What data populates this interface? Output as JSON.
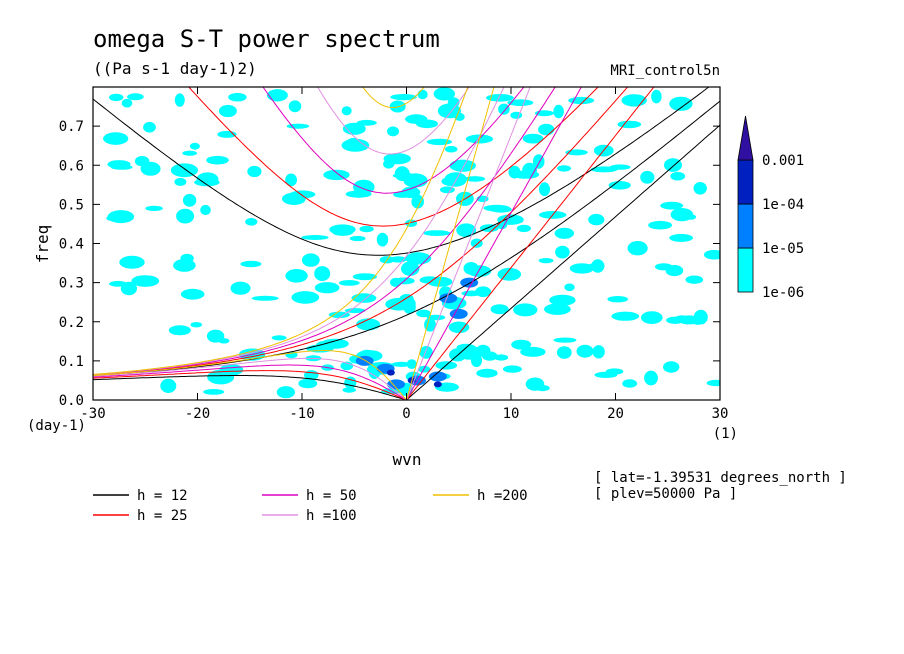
{
  "chart_data": {
    "type": "heatmap",
    "title": "omega S-T power spectrum",
    "units": "((Pa s-1 day-1)2)",
    "source": "MRI_control5n",
    "xlabel": "wvn",
    "ylabel": "freq",
    "x_unit": "(1)",
    "y_unit": "(day-1)",
    "xlim": [
      -30,
      30
    ],
    "ylim": [
      0,
      0.8
    ],
    "x_ticks": [
      -30,
      -20,
      -10,
      0,
      10,
      20,
      30
    ],
    "y_ticks": [
      0,
      0.1,
      0.2,
      0.3,
      0.4,
      0.5,
      0.6,
      0.7
    ],
    "grid": false,
    "colorbar": {
      "levels": [
        "1e-06",
        "1e-05",
        "1e-04",
        "0.001"
      ],
      "colors": [
        "#00ffff",
        "#0080ff",
        "#0020c0",
        "#3010a0"
      ]
    },
    "dispersion_curves": [
      {
        "label": "h = 12",
        "h": 12,
        "color": "#000000"
      },
      {
        "label": "h = 25",
        "h": 25,
        "color": "#ff0000"
      },
      {
        "label": "h = 50",
        "h": 50,
        "color": "#e000c0"
      },
      {
        "label": "h =100",
        "h": 100,
        "color": "#e090e0"
      },
      {
        "label": "h =200",
        "h": 200,
        "color": "#f0c000"
      }
    ],
    "annotations": [
      "[ lat=-1.39531 degrees_north ]",
      "[ plev=50000 Pa ]"
    ]
  }
}
